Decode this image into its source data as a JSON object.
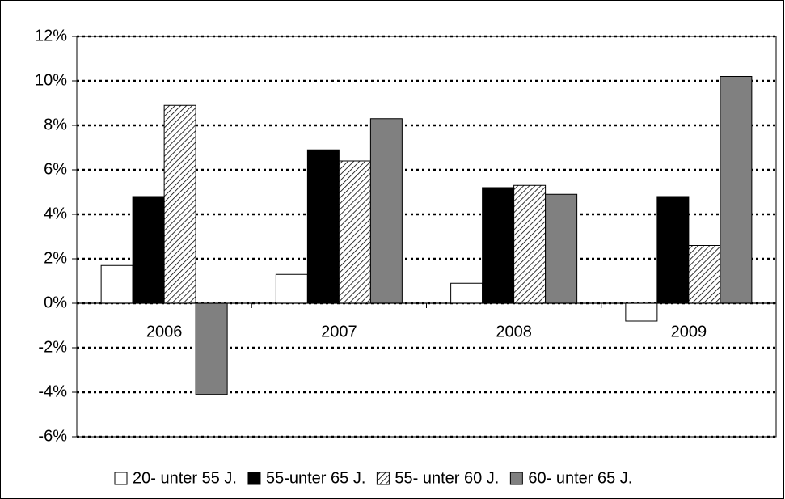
{
  "chart_data": {
    "type": "bar",
    "categories": [
      "2006",
      "2007",
      "2008",
      "2009"
    ],
    "series": [
      {
        "name": "20- unter 55 J.",
        "color": "#ffffff",
        "values": [
          1.7,
          1.3,
          0.9,
          -0.8
        ]
      },
      {
        "name": "55-unter 65 J.",
        "color": "#000000",
        "values": [
          4.8,
          6.9,
          5.2,
          4.8
        ]
      },
      {
        "name": "55- unter 60 J.",
        "color": "#000000",
        "pattern": "hatch",
        "values": [
          8.9,
          6.4,
          5.3,
          2.6
        ]
      },
      {
        "name": "60- unter 65 J.",
        "color": "#808080",
        "values": [
          -4.1,
          8.3,
          4.9,
          10.2
        ]
      }
    ],
    "ylim": [
      -6,
      12
    ],
    "yticks": [
      {
        "value": -6,
        "label": "-6%"
      },
      {
        "value": -4,
        "label": "-4%"
      },
      {
        "value": -2,
        "label": "-2%"
      },
      {
        "value": 0,
        "label": "0%"
      },
      {
        "value": 2,
        "label": "2%"
      },
      {
        "value": 4,
        "label": "4%"
      },
      {
        "value": 6,
        "label": "6%"
      },
      {
        "value": 8,
        "label": "8%"
      },
      {
        "value": 10,
        "label": "10%"
      },
      {
        "value": 12,
        "label": "12%"
      }
    ],
    "grid": true,
    "legend": "bottom"
  }
}
